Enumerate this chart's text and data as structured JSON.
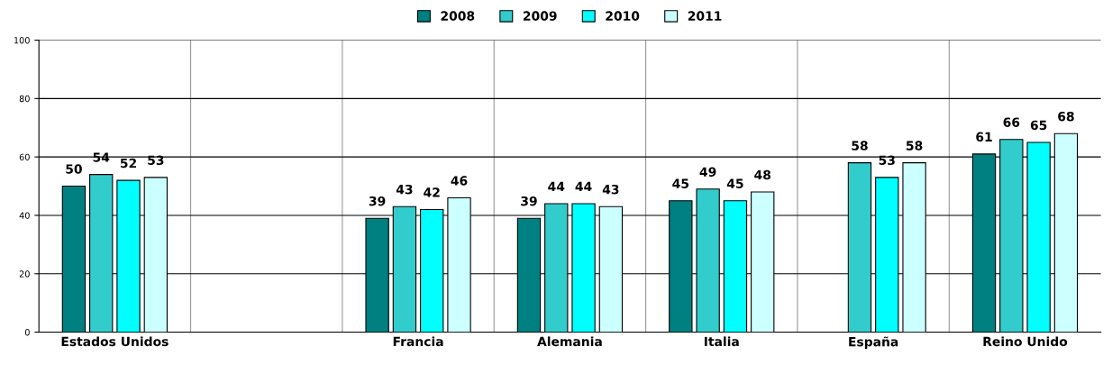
{
  "chart_data": {
    "type": "bar",
    "categories": [
      "Estados Unidos",
      null,
      "Francia",
      "Alemania",
      "Italia",
      "España",
      "Reino Unido"
    ],
    "series": [
      {
        "name": "2008",
        "color": "#008080",
        "values": [
          50,
          null,
          39,
          39,
          45,
          null,
          61
        ]
      },
      {
        "name": "2009",
        "color": "#33cccc",
        "values": [
          54,
          null,
          43,
          44,
          49,
          58,
          66
        ]
      },
      {
        "name": "2010",
        "color": "#00ffff",
        "values": [
          52,
          null,
          42,
          44,
          45,
          53,
          65
        ]
      },
      {
        "name": "2011",
        "color": "#ccffff",
        "values": [
          53,
          null,
          46,
          43,
          48,
          58,
          68
        ]
      }
    ],
    "ylim": [
      0,
      100
    ],
    "yticks": [
      0,
      20,
      40,
      60,
      80,
      100
    ],
    "grid": true,
    "legend": "top",
    "data_labels": true
  }
}
